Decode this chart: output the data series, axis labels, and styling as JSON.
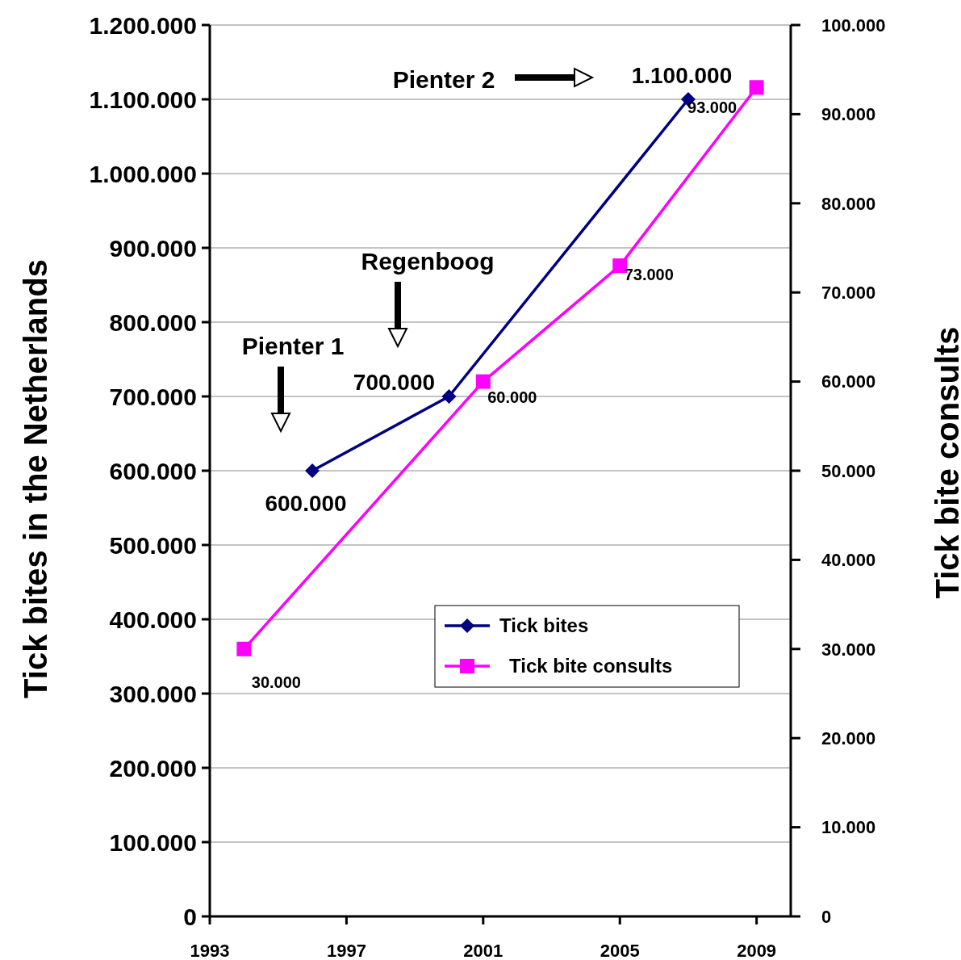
{
  "chart_data": {
    "type": "line",
    "ylabel": "Tick bites in the Netherlands",
    "y2label": "Tick bite consults",
    "xlim": [
      1993,
      2010
    ],
    "xticks": [
      1993,
      1997,
      2001,
      2005,
      2009
    ],
    "ylim": [
      0,
      1200000
    ],
    "yticks": [
      0,
      {
        "value": 100000,
        "label": "100.000"
      },
      {
        "value": 200000,
        "label": "200.000"
      },
      {
        "value": 300000,
        "label": "300.000"
      },
      {
        "value": 400000,
        "label": "400.000"
      },
      {
        "value": 500000,
        "label": "500.000"
      },
      {
        "value": 600000,
        "label": "600.000"
      },
      {
        "value": 700000,
        "label": "700.000"
      },
      {
        "value": 800000,
        "label": "800.000"
      },
      {
        "value": 900000,
        "label": "900.000"
      },
      {
        "value": 1000000,
        "label": "1.000.000"
      },
      {
        "value": 1100000,
        "label": "1.100.000"
      },
      {
        "value": 1200000,
        "label": "1.200.000"
      }
    ],
    "y2lim": [
      0,
      100000
    ],
    "y2ticks": [
      0,
      {
        "value": 10000,
        "label": "10.000"
      },
      {
        "value": 20000,
        "label": "20.000"
      },
      {
        "value": 30000,
        "label": "30.000"
      },
      {
        "value": 40000,
        "label": "40.000"
      },
      {
        "value": 50000,
        "label": "50.000"
      },
      {
        "value": 60000,
        "label": "60.000"
      },
      {
        "value": 70000,
        "label": "70.000"
      },
      {
        "value": 80000,
        "label": "80.000"
      },
      {
        "value": 90000,
        "label": "90.000"
      },
      {
        "value": 100000,
        "label": "100.000"
      }
    ],
    "grid": "y",
    "legend": "bottom right",
    "series": [
      {
        "name": "Tick bites",
        "color": "#000080",
        "marker": "diamond",
        "x": [
          1996,
          2000,
          2007
        ],
        "values": [
          600000,
          700000,
          1100000
        ],
        "value_labels": [
          "600.000",
          "700.000",
          "1.100.000"
        ]
      },
      {
        "name": "Tick bite consults",
        "color": "#ff00ff",
        "marker": "square",
        "axis": "y2",
        "x": [
          1994,
          2001,
          2005,
          2009
        ],
        "values": [
          30000,
          60000,
          73000,
          93000
        ],
        "value_labels": [
          "30.000",
          "60.000",
          "73.000",
          "93.000"
        ]
      }
    ],
    "annotations": [
      "Pienter 1",
      "Regenboog",
      "Pienter 2"
    ]
  }
}
